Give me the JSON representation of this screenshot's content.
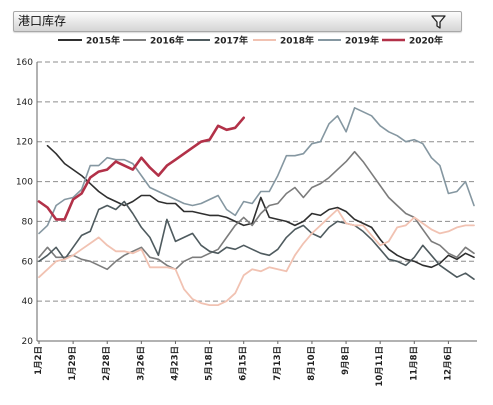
{
  "header": {
    "title": "港口库存",
    "filter_icon": "filter-icon"
  },
  "chart_data": {
    "type": "line",
    "x_tick_labels": [
      "1月2日",
      "1月29日",
      "2月28日",
      "3月26日",
      "4月23日",
      "5月18日",
      "6月15日",
      "7月13日",
      "8月10日",
      "9月8日",
      "10月11日",
      "11月8日",
      "12月6日"
    ],
    "y_ticks": [
      160,
      140,
      120,
      100,
      80,
      60,
      40,
      20
    ],
    "ylim": [
      20,
      160
    ],
    "grid": true,
    "legend_position": "top",
    "series": [
      {
        "name": "2015年",
        "color": "#2f2f2f",
        "values": [
          null,
          118,
          114,
          109,
          106,
          103,
          99,
          95,
          92,
          90,
          88,
          90,
          93,
          93,
          90,
          89,
          89,
          85,
          85,
          84,
          83,
          83,
          82,
          80,
          78,
          79,
          92,
          82,
          81,
          80,
          78,
          80,
          84,
          83,
          86,
          87,
          85,
          81,
          79,
          77,
          71,
          66,
          63,
          61,
          60,
          58,
          57,
          59,
          63,
          61,
          64,
          62
        ]
      },
      {
        "name": "2016年",
        "color": "#7c7c7c",
        "values": [
          62,
          67,
          62,
          62,
          63,
          61,
          60,
          58,
          56,
          60,
          63,
          65,
          67,
          62,
          61,
          58,
          56,
          60,
          62,
          62,
          64,
          66,
          72,
          78,
          82,
          78,
          84,
          88,
          89,
          94,
          97,
          92,
          97,
          99,
          102,
          106,
          110,
          115,
          110,
          104,
          98,
          92,
          88,
          84,
          82,
          76,
          70,
          68,
          64,
          62,
          67,
          64
        ]
      },
      {
        "name": "2017年",
        "color": "#4f5b5f",
        "values": [
          60,
          63,
          67,
          61,
          67,
          73,
          75,
          86,
          88,
          86,
          90,
          84,
          77,
          72,
          63,
          81,
          70,
          72,
          74,
          68,
          65,
          64,
          67,
          66,
          68,
          66,
          64,
          63,
          66,
          72,
          76,
          78,
          74,
          72,
          77,
          80,
          79,
          78,
          75,
          71,
          66,
          61,
          60,
          58,
          62,
          68,
          63,
          58,
          55,
          52,
          54,
          51
        ]
      },
      {
        "name": "2018年",
        "color": "#f1c2b2",
        "values": [
          52,
          56,
          60,
          61,
          63,
          66,
          69,
          72,
          68,
          65,
          65,
          64,
          66,
          57,
          57,
          57,
          56,
          46,
          41,
          39,
          38,
          38,
          40,
          44,
          53,
          56,
          55,
          57,
          56,
          55,
          63,
          69,
          74,
          78,
          82,
          86,
          79,
          78,
          78,
          73,
          68,
          70,
          77,
          78,
          82,
          79,
          76,
          74,
          75,
          77,
          78,
          78
        ]
      },
      {
        "name": "2019年",
        "color": "#8597a1",
        "values": [
          74,
          78,
          88,
          91,
          92,
          96,
          108,
          108,
          112,
          111,
          111,
          109,
          103,
          97,
          95,
          93,
          91,
          89,
          88,
          89,
          91,
          93,
          86,
          83,
          90,
          89,
          95,
          95,
          103,
          113,
          113,
          114,
          119,
          120,
          129,
          133,
          125,
          137,
          135,
          133,
          128,
          125,
          123,
          120,
          121,
          119,
          112,
          108,
          94,
          95,
          100,
          88
        ]
      },
      {
        "name": "2020年",
        "color": "#b23148",
        "values": [
          90,
          87,
          81,
          81,
          91,
          94,
          102,
          105,
          106,
          110,
          108,
          106,
          112,
          107,
          103,
          108,
          111,
          114,
          117,
          120,
          121,
          128,
          126,
          127,
          132
        ]
      }
    ]
  }
}
